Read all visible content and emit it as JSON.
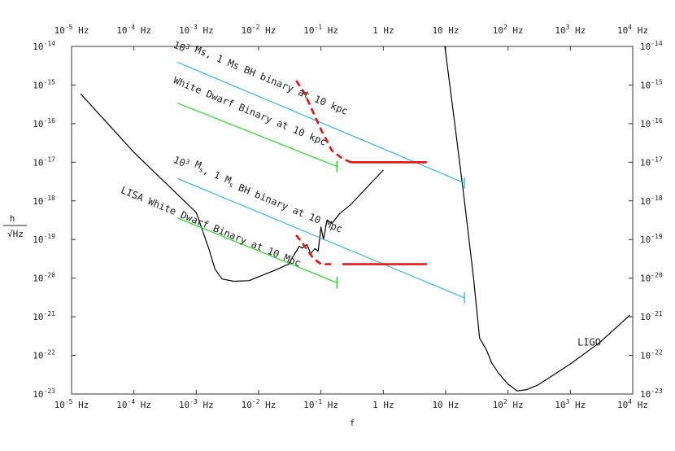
{
  "chart_data": {
    "type": "line",
    "xlabel": "f",
    "ylabel_num": "h",
    "ylabel_den": "√Hz",
    "x_scale": "log",
    "y_scale": "log",
    "xlim": [
      1e-05,
      10000
    ],
    "ylim": [
      1e-23,
      1e-14
    ],
    "grid": false,
    "x_ticks": [
      {
        "base": "10",
        "exp": "-5",
        "unit": "Hz"
      },
      {
        "base": "10",
        "exp": "-4",
        "unit": "Hz"
      },
      {
        "base": "10",
        "exp": "-3",
        "unit": "Hz"
      },
      {
        "base": "10",
        "exp": "-2",
        "unit": "Hz"
      },
      {
        "base": "10",
        "exp": "-1",
        "unit": "Hz"
      },
      {
        "base": "1",
        "exp": "",
        "unit": "Hz"
      },
      {
        "base": "10",
        "exp": "",
        "unit": "Hz"
      },
      {
        "base": "10",
        "exp": "2",
        "unit": "Hz"
      },
      {
        "base": "10",
        "exp": "3",
        "unit": "Hz"
      },
      {
        "base": "10",
        "exp": "4",
        "unit": "Hz"
      }
    ],
    "y_ticks": [
      {
        "base": "10",
        "exp": "-14"
      },
      {
        "base": "10",
        "exp": "-15"
      },
      {
        "base": "10",
        "exp": "-16"
      },
      {
        "base": "10",
        "exp": "-17"
      },
      {
        "base": "10",
        "exp": "-18"
      },
      {
        "base": "10",
        "exp": "-19"
      },
      {
        "base": "10",
        "exp": "-20"
      },
      {
        "base": "10",
        "exp": "-21"
      },
      {
        "base": "10",
        "exp": "-22"
      },
      {
        "base": "10",
        "exp": "-23"
      }
    ],
    "series": [
      {
        "key": "lisa",
        "color": "#000000",
        "style": "solid",
        "points": [
          [
            1.4e-05,
            5.9e-16
          ],
          [
            0.0001,
            1.8e-17
          ],
          [
            0.001,
            5e-19
          ],
          [
            0.0016,
            5.6e-20
          ],
          [
            0.002,
            1.7e-20
          ],
          [
            0.0026,
            9.5e-21
          ],
          [
            0.004,
            8.3e-21
          ],
          [
            0.007,
            8.6e-21
          ],
          [
            0.02,
            1.7e-20
          ],
          [
            0.03,
            2.3e-20
          ],
          [
            0.045,
            6.7e-20
          ],
          [
            0.05,
            6e-20
          ],
          [
            0.06,
            7.4e-20
          ],
          [
            0.068,
            4.3e-20
          ],
          [
            0.08,
            5.8e-20
          ],
          [
            0.09,
            5e-20
          ],
          [
            0.1,
            2.1e-19
          ],
          [
            0.11,
            1e-19
          ],
          [
            0.125,
            3.2e-19
          ],
          [
            0.15,
            2.6e-19
          ],
          [
            0.2,
            4.7e-19
          ],
          [
            0.3,
            8e-19
          ],
          [
            1,
            6.3e-18
          ]
        ]
      },
      {
        "key": "ligo",
        "color": "#000000",
        "style": "solid",
        "points": [
          [
            9.7,
            1e-14
          ],
          [
            14,
            1e-16
          ],
          [
            20,
            1e-18
          ],
          [
            28,
            1e-20
          ],
          [
            35,
            2.8e-22
          ],
          [
            45,
            1.4e-22
          ],
          [
            55,
            6.3e-23
          ],
          [
            70,
            3.5e-23
          ],
          [
            100,
            1.8e-23
          ],
          [
            140,
            1.2e-23
          ],
          [
            200,
            1.3e-23
          ],
          [
            300,
            1.7e-23
          ],
          [
            1000,
            6e-23
          ],
          [
            3000,
            2.2e-22
          ],
          [
            9000,
            1.1e-21
          ]
        ]
      },
      {
        "key": "bh_10kpc",
        "color": "#33bbe8",
        "style": "solid",
        "points": [
          [
            0.0005,
            3.9e-15
          ],
          [
            20,
            2.9e-18
          ]
        ],
        "end_bar": true
      },
      {
        "key": "bh_10mpc",
        "color": "#33bbe8",
        "style": "solid",
        "points": [
          [
            0.0005,
            3.8e-18
          ],
          [
            20,
            3.1e-21
          ]
        ],
        "end_bar": true
      },
      {
        "key": "wd_10kpc",
        "color": "#22dd22",
        "style": "solid",
        "points": [
          [
            0.0005,
            3.4e-16
          ],
          [
            0.18,
            7.8e-18
          ]
        ],
        "end_bar": true
      },
      {
        "key": "wd_10mpc",
        "color": "#22dd22",
        "style": "solid",
        "points": [
          [
            0.0005,
            3.6e-19
          ],
          [
            0.18,
            7.6e-21
          ]
        ],
        "end_bar": true
      },
      {
        "key": "red_upper_dash",
        "color": "#e81010",
        "style": "dashed",
        "points": [
          [
            0.04,
            1.3e-15
          ],
          [
            0.055,
            6e-16
          ],
          [
            0.07,
            2.5e-16
          ],
          [
            0.1,
            7e-17
          ],
          [
            0.15,
            2e-17
          ],
          [
            0.22,
            1.25e-17
          ],
          [
            0.3,
            1e-17
          ]
        ]
      },
      {
        "key": "red_upper_solid",
        "color": "#e81010",
        "style": "solid",
        "points": [
          [
            0.3,
            1e-17
          ],
          [
            5,
            1e-17
          ]
        ]
      },
      {
        "key": "red_lower_dash",
        "color": "#e81010",
        "style": "dashed",
        "points": [
          [
            0.04,
            1.3e-19
          ],
          [
            0.055,
            6.7e-20
          ],
          [
            0.075,
            3.3e-20
          ],
          [
            0.1,
            2.3e-20
          ],
          [
            0.16,
            2.3e-20
          ]
        ]
      },
      {
        "key": "red_lower_solid",
        "color": "#e81010",
        "style": "solid",
        "points": [
          [
            0.22,
            2.3e-20
          ],
          [
            5,
            2.3e-20
          ]
        ]
      }
    ],
    "annotations": [
      {
        "key": "ann1",
        "pre": "10",
        "sup": "3",
        "post": "   Ms, 1 Ms BH binary at 10 kpc",
        "f": 0.00042,
        "h": 9.5e-15,
        "angle": 22.5
      },
      {
        "key": "ann2",
        "pre": "",
        "sup": "",
        "post": "White Dwarf Binary at 10 kpc",
        "f": 0.00042,
        "h": 1.15e-15,
        "angle": 22.5
      },
      {
        "key": "ann3",
        "pre": "10",
        "sup": "3",
        "post": " Ms, 1 Ms BH binary at 10 Mpc",
        "f": 0.00042,
        "h": 1e-17,
        "angle": 22.5,
        "sub_s": true
      },
      {
        "key": "ann4",
        "pre": "",
        "sup": "",
        "post": "LISA White Dwarf Binary at 10 Mpc",
        "f": 6e-05,
        "h": 1.65e-18,
        "angle": 22.5
      },
      {
        "key": "ann5",
        "pre": "",
        "sup": "",
        "post": "LIGO",
        "f": 1300,
        "h": 1.8e-22,
        "angle": 0
      }
    ]
  }
}
